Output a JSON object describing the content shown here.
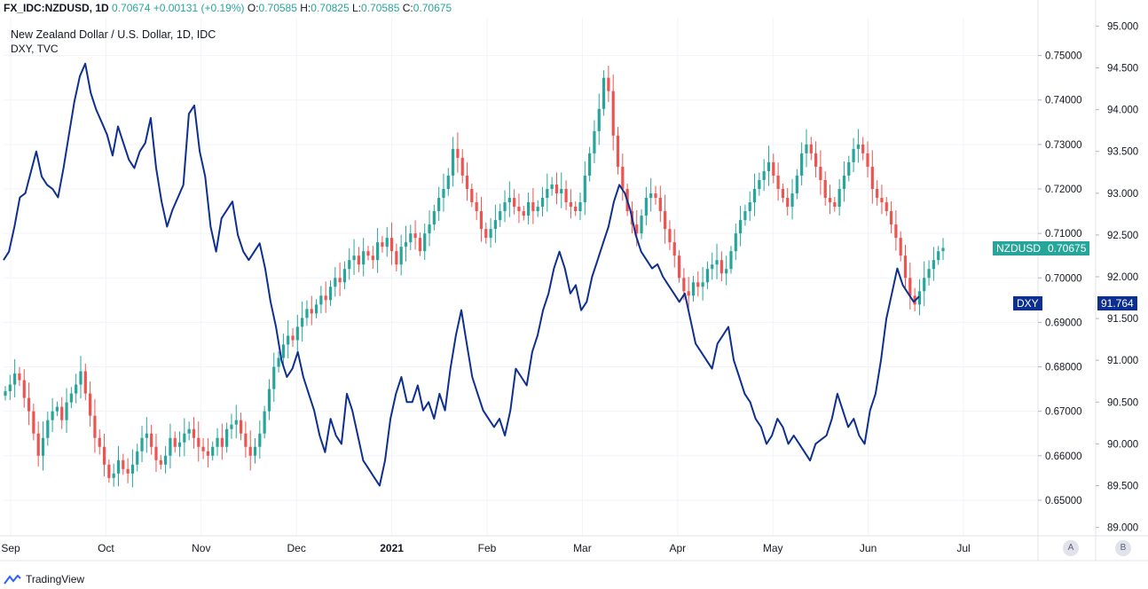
{
  "header": {
    "symbol": "FX_IDC:NZDUSD, 1D",
    "last": "0.70674",
    "change": "+0.00131 (+0.19%)",
    "o_label": "O:",
    "o_value": "0.70585",
    "h_label": "H:",
    "h_value": "0.70825",
    "l_label": "L:",
    "l_value": "0.70585",
    "c_label": "C:",
    "c_value": "0.70675"
  },
  "legend": {
    "main_title": "New Zealand Dollar / U.S. Dollar, 1D, IDC",
    "overlay_title": "DXY, TVC"
  },
  "tags": {
    "nzdusd_name": "NZDUSD",
    "nzdusd_value": "0.70675",
    "dxy_name": "DXY",
    "dxy_value": "91.764"
  },
  "scale_buttons": {
    "a": "A",
    "b": "B"
  },
  "footer": {
    "brand": "TradingView"
  },
  "colors": {
    "up": "#26a69a",
    "down": "#ef5350",
    "dxy_line": "#0d2f8f",
    "grid": "#f0f3fa",
    "axis_text": "#131722",
    "dxy_tag": "#0d2f8f",
    "nzd_tag": "#26a69a"
  },
  "chart_data": {
    "type": "candlestick+line",
    "title": "New Zealand Dollar / U.S. Dollar, 1D, IDC",
    "x_tick_labels": [
      "Sep",
      "Oct",
      "Nov",
      "Dec",
      "2021",
      "Feb",
      "Mar",
      "Apr",
      "May",
      "Jun",
      "Jul"
    ],
    "x_label_bold": [
      "2021"
    ],
    "y_right_inner": {
      "name": "NZDUSD",
      "range": [
        0.642,
        0.7585
      ],
      "ticks": [
        "0.65000",
        "0.66000",
        "0.67000",
        "0.68000",
        "0.69000",
        "0.70000",
        "0.71000",
        "0.72000",
        "0.73000",
        "0.74000",
        "0.75000"
      ]
    },
    "y_right_outer": {
      "name": "DXY",
      "range": [
        88.9,
        95.1
      ],
      "ticks": [
        "89.000",
        "89.500",
        "90.000",
        "90.500",
        "91.000",
        "91.500",
        "92.000",
        "92.500",
        "93.000",
        "93.500",
        "94.000",
        "94.500",
        "95.000"
      ]
    },
    "series": [
      {
        "name": "NZDUSD",
        "type": "candlestick",
        "note": "approximate daily closes read from chart",
        "close": [
          0.6745,
          0.676,
          0.6785,
          0.677,
          0.673,
          0.67,
          0.665,
          0.66,
          0.664,
          0.668,
          0.67,
          0.671,
          0.668,
          0.672,
          0.674,
          0.676,
          0.679,
          0.674,
          0.669,
          0.664,
          0.662,
          0.658,
          0.655,
          0.656,
          0.659,
          0.657,
          0.656,
          0.658,
          0.661,
          0.664,
          0.665,
          0.662,
          0.659,
          0.658,
          0.66,
          0.664,
          0.662,
          0.663,
          0.665,
          0.666,
          0.664,
          0.662,
          0.661,
          0.66,
          0.662,
          0.664,
          0.662,
          0.666,
          0.667,
          0.668,
          0.665,
          0.662,
          0.66,
          0.662,
          0.665,
          0.67,
          0.675,
          0.68,
          0.682,
          0.685,
          0.687,
          0.686,
          0.689,
          0.691,
          0.693,
          0.692,
          0.694,
          0.696,
          0.695,
          0.698,
          0.7,
          0.699,
          0.702,
          0.704,
          0.705,
          0.703,
          0.706,
          0.705,
          0.704,
          0.708,
          0.707,
          0.709,
          0.706,
          0.703,
          0.707,
          0.708,
          0.71,
          0.709,
          0.706,
          0.71,
          0.712,
          0.715,
          0.718,
          0.72,
          0.723,
          0.729,
          0.727,
          0.723,
          0.72,
          0.717,
          0.715,
          0.711,
          0.709,
          0.711,
          0.713,
          0.715,
          0.717,
          0.718,
          0.716,
          0.715,
          0.714,
          0.717,
          0.715,
          0.716,
          0.718,
          0.72,
          0.721,
          0.719,
          0.72,
          0.717,
          0.716,
          0.715,
          0.717,
          0.723,
          0.728,
          0.733,
          0.738,
          0.745,
          0.742,
          0.732,
          0.725,
          0.72,
          0.715,
          0.712,
          0.71,
          0.714,
          0.718,
          0.719,
          0.718,
          0.715,
          0.711,
          0.708,
          0.705,
          0.7,
          0.697,
          0.696,
          0.699,
          0.698,
          0.699,
          0.702,
          0.703,
          0.704,
          0.701,
          0.702,
          0.706,
          0.71,
          0.713,
          0.715,
          0.717,
          0.72,
          0.722,
          0.724,
          0.726,
          0.723,
          0.72,
          0.718,
          0.716,
          0.719,
          0.723,
          0.728,
          0.73,
          0.728,
          0.725,
          0.722,
          0.718,
          0.717,
          0.716,
          0.72,
          0.723,
          0.726,
          0.729,
          0.73,
          0.728,
          0.725,
          0.72,
          0.718,
          0.717,
          0.715,
          0.712,
          0.709,
          0.705,
          0.7,
          0.696,
          0.694,
          0.697,
          0.7,
          0.702,
          0.704,
          0.706,
          0.70675
        ]
      },
      {
        "name": "DXY",
        "type": "line",
        "note": "approximate daily closes read from chart",
        "values": [
          92.2,
          92.3,
          92.6,
          92.95,
          93.0,
          93.25,
          93.5,
          93.2,
          93.1,
          93.05,
          92.95,
          93.3,
          93.7,
          94.1,
          94.4,
          94.55,
          94.2,
          94.0,
          93.85,
          93.7,
          93.45,
          93.8,
          93.6,
          93.4,
          93.3,
          93.5,
          93.6,
          93.9,
          93.3,
          92.9,
          92.6,
          92.8,
          92.95,
          93.1,
          93.95,
          94.05,
          93.5,
          93.2,
          92.6,
          92.3,
          92.7,
          92.8,
          92.9,
          92.5,
          92.3,
          92.2,
          92.3,
          92.4,
          92.1,
          91.7,
          91.4,
          91.0,
          90.8,
          90.9,
          91.1,
          90.8,
          90.6,
          90.4,
          90.1,
          89.9,
          90.3,
          90.1,
          90.0,
          90.6,
          90.4,
          90.1,
          89.8,
          89.7,
          89.6,
          89.5,
          89.8,
          90.3,
          90.6,
          90.8,
          90.5,
          90.5,
          90.7,
          90.4,
          90.5,
          90.3,
          90.6,
          90.4,
          90.9,
          91.3,
          91.6,
          91.2,
          90.8,
          90.6,
          90.4,
          90.3,
          90.2,
          90.3,
          90.1,
          90.4,
          90.9,
          90.8,
          90.7,
          91.1,
          91.3,
          91.6,
          91.8,
          92.1,
          92.3,
          92.1,
          91.8,
          91.9,
          91.6,
          91.7,
          92.0,
          92.2,
          92.4,
          92.6,
          92.9,
          93.1,
          93.0,
          92.8,
          92.5,
          92.3,
          92.2,
          92.1,
          92.15,
          92.0,
          91.9,
          91.8,
          91.7,
          91.8,
          91.5,
          91.2,
          91.1,
          91.0,
          90.9,
          91.2,
          91.3,
          91.4,
          91.0,
          90.8,
          90.6,
          90.5,
          90.3,
          90.2,
          90.0,
          90.1,
          90.3,
          90.2,
          90.0,
          90.1,
          90.0,
          89.9,
          89.8,
          90.0,
          90.05,
          90.1,
          90.3,
          90.6,
          90.4,
          90.2,
          90.3,
          90.1,
          90.0,
          90.4,
          90.6,
          91.0,
          91.5,
          91.8,
          92.1,
          91.9,
          91.8,
          91.7,
          91.764
        ]
      }
    ]
  }
}
